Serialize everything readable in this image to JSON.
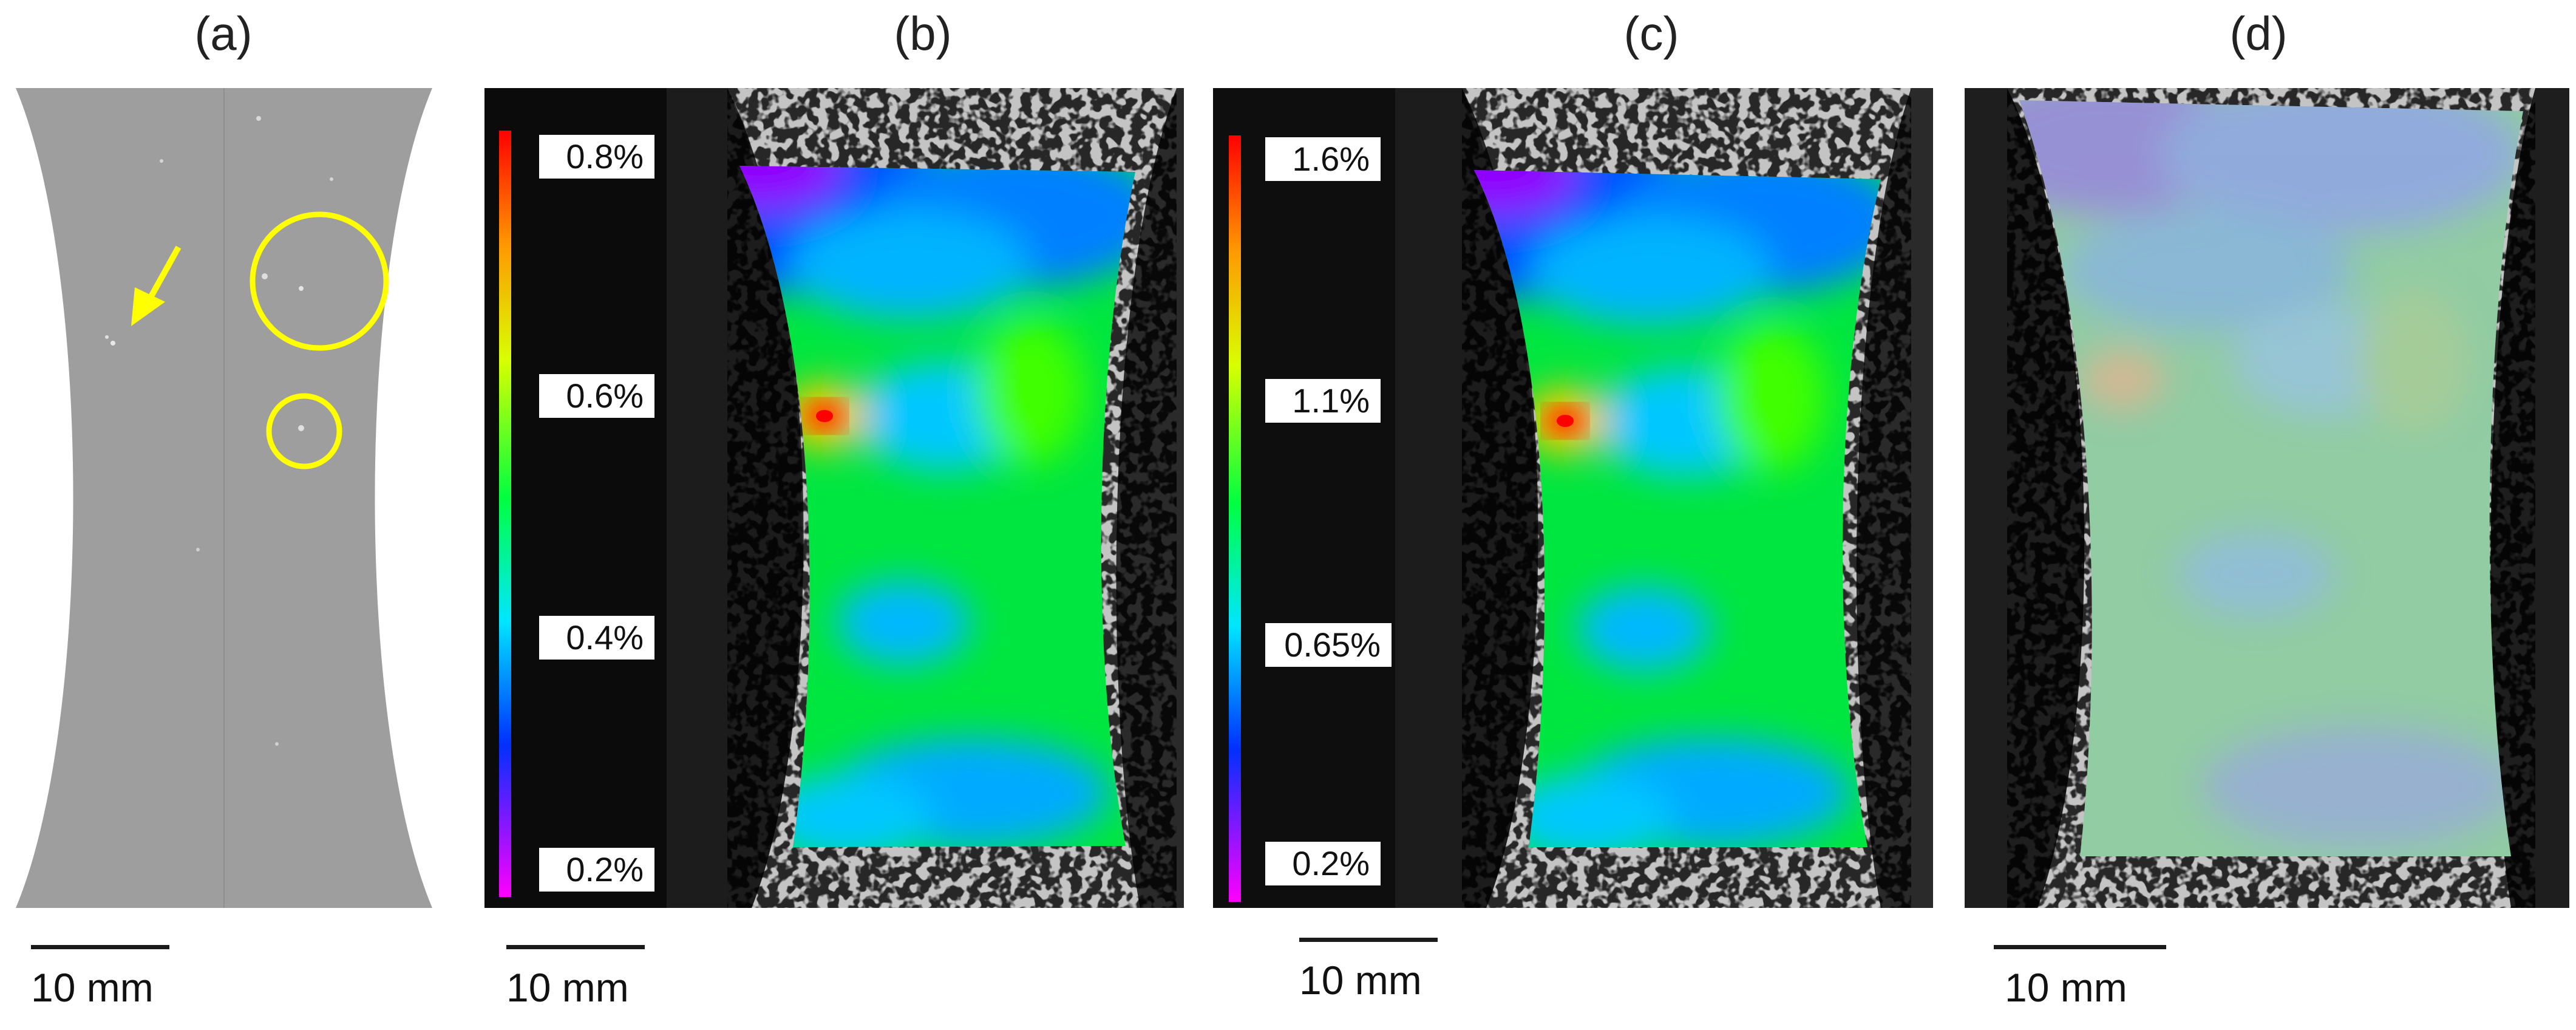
{
  "panels": [
    {
      "label": "(a)",
      "scale_bar": "10 mm"
    },
    {
      "label": "(b)",
      "scale_bar": "10 mm",
      "colorbar": [
        "0.8%",
        "0.6%",
        "0.4%",
        "0.2%"
      ]
    },
    {
      "label": "(c)",
      "scale_bar": "10 mm",
      "colorbar": [
        "1.6%",
        "1.1%",
        "0.65%",
        "0.2%"
      ]
    },
    {
      "label": "(d)",
      "scale_bar": "10 mm"
    }
  ],
  "annotation_color": "#ffff00"
}
